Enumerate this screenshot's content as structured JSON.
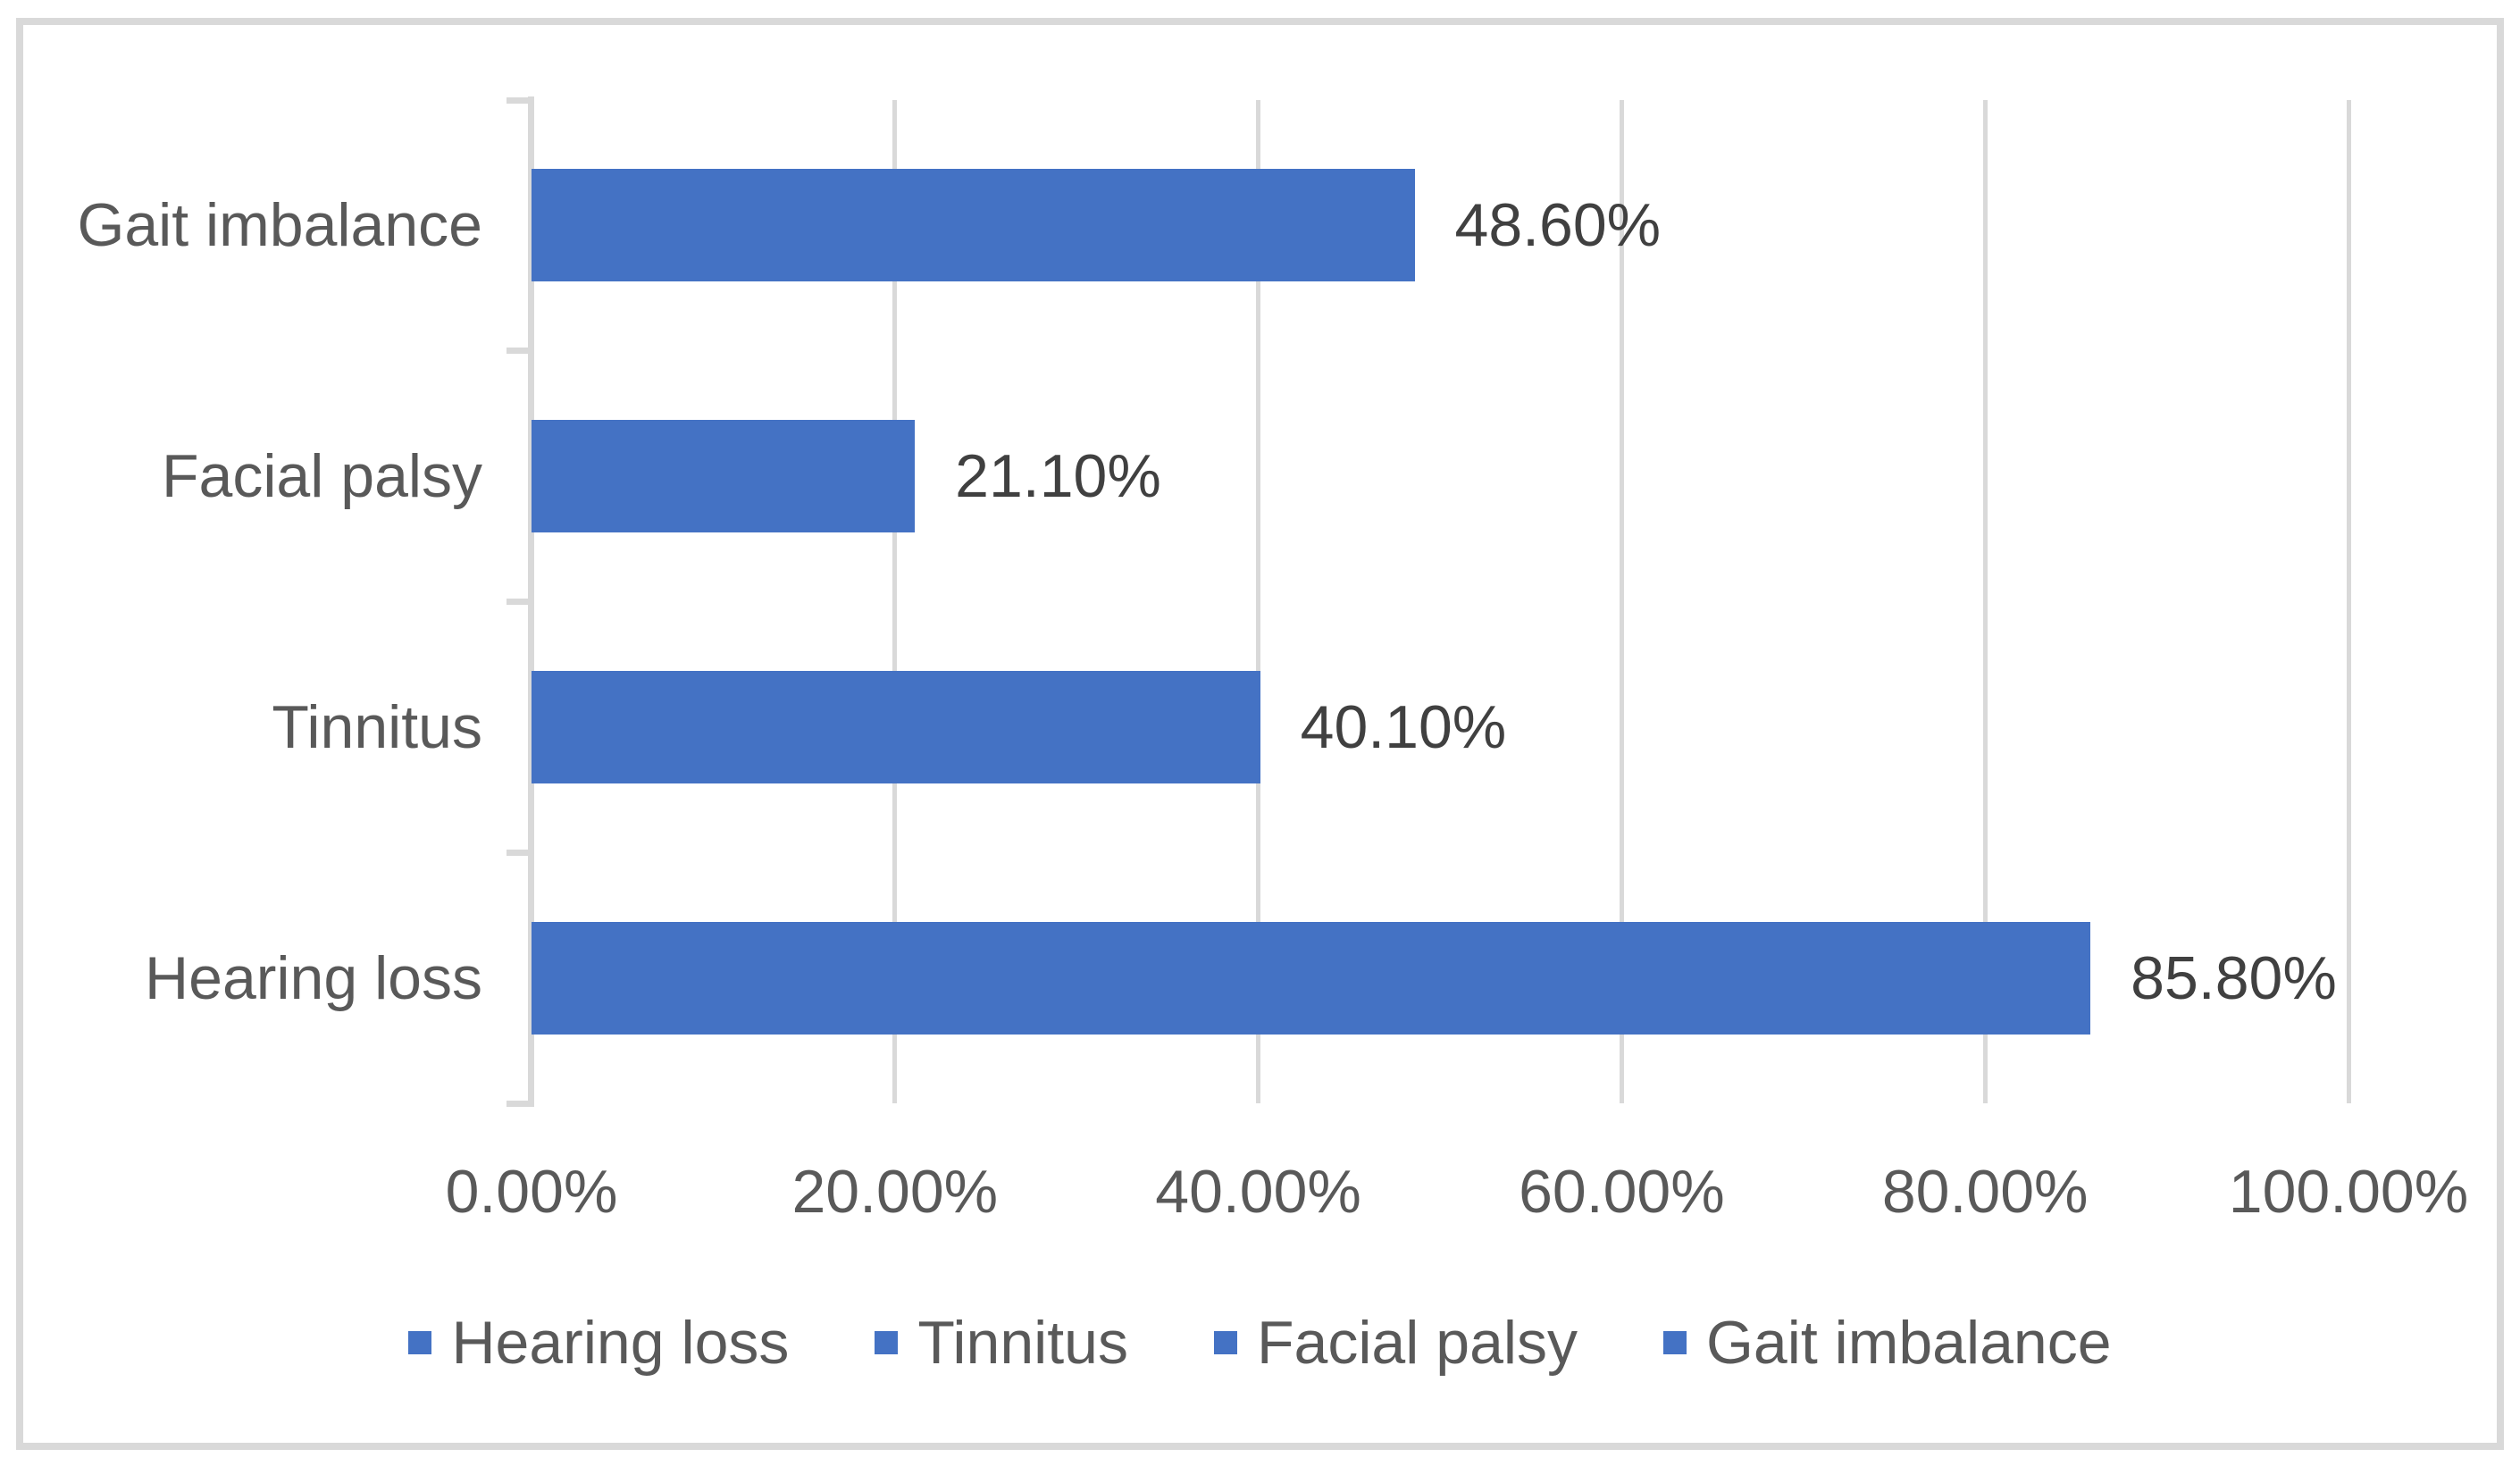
{
  "chart_data": {
    "type": "bar",
    "orientation": "horizontal",
    "title": "",
    "categories": [
      "Gait imbalance",
      "Facial palsy",
      "Tinnitus",
      "Hearing loss"
    ],
    "values": [
      48.6,
      21.1,
      40.1,
      85.8
    ],
    "data_labels": [
      "48.60%",
      "21.10%",
      "40.10%",
      "85.80%"
    ],
    "x_axis": {
      "min": 0,
      "max": 100,
      "tick_values": [
        0,
        20,
        40,
        60,
        80,
        100
      ],
      "tick_labels": [
        "0.00%",
        "20.00%",
        "40.00%",
        "60.00%",
        "80.00%",
        "100.00%"
      ]
    },
    "grid": true,
    "legend": {
      "position": "bottom",
      "items": [
        "Hearing loss",
        "Tinnitus",
        "Facial palsy",
        "Gait imbalance"
      ]
    },
    "colors": {
      "bar": "#4472C4",
      "gridline": "#D9D9D9",
      "axis": "#D9D9D9",
      "chart_border": "#D9D9D9",
      "tick_text": "#595959",
      "data_label_text": "#404040"
    }
  }
}
